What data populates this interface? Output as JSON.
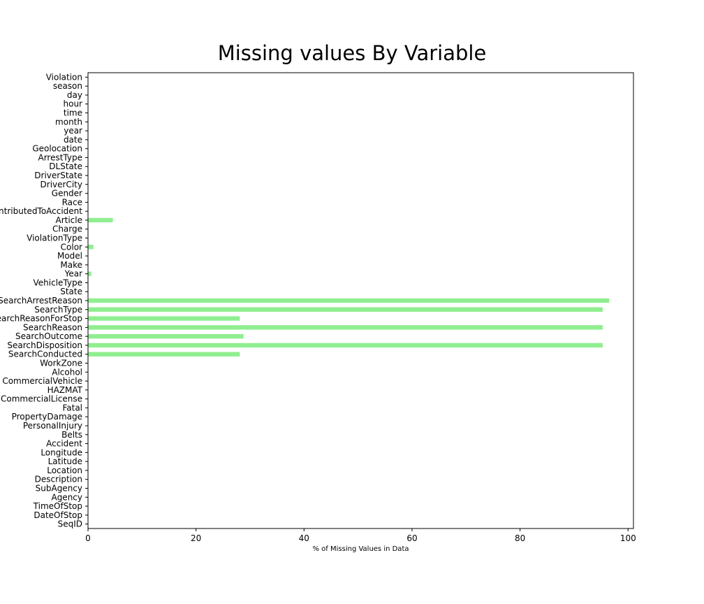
{
  "chart_data": {
    "type": "bar",
    "orientation": "horizontal",
    "title": "Missing values By Variable",
    "xlabel": "% of Missing Values in Data",
    "ylabel": "",
    "xlim": [
      0,
      101
    ],
    "x_ticks": [
      0,
      20,
      40,
      60,
      80,
      100
    ],
    "grid": false,
    "legend": "none",
    "bar_color": "#90ee90",
    "categories": [
      "SeqID",
      "DateOfStop",
      "TimeOfStop",
      "Agency",
      "SubAgency",
      "Description",
      "Location",
      "Latitude",
      "Longitude",
      "Accident",
      "Belts",
      "PersonalInjury",
      "PropertyDamage",
      "Fatal",
      "CommercialLicense",
      "HAZMAT",
      "CommercialVehicle",
      "Alcohol",
      "WorkZone",
      "SearchConducted",
      "SearchDisposition",
      "SearchOutcome",
      "SearchReason",
      "SearchReasonForStop",
      "SearchType",
      "SearchArrestReason",
      "State",
      "VehicleType",
      "Year",
      "Make",
      "Model",
      "Color",
      "ViolationType",
      "Charge",
      "Article",
      "ContributedToAccident",
      "Race",
      "Gender",
      "DriverCity",
      "DriverState",
      "DLState",
      "ArrestType",
      "Geolocation",
      "date",
      "year",
      "month",
      "time",
      "hour",
      "day",
      "season",
      "Violation"
    ],
    "values": [
      0,
      0,
      0,
      0,
      0,
      0,
      0,
      0,
      0,
      0,
      0,
      0,
      0,
      0,
      0,
      0,
      0,
      0,
      0,
      28.1,
      95.3,
      28.8,
      95.3,
      28.1,
      95.3,
      96.5,
      0,
      0,
      0.6,
      0,
      0,
      1.0,
      0,
      0,
      4.6,
      0,
      0,
      0,
      0,
      0,
      0,
      0,
      0,
      0,
      0,
      0,
      0,
      0,
      0,
      0,
      0
    ]
  }
}
